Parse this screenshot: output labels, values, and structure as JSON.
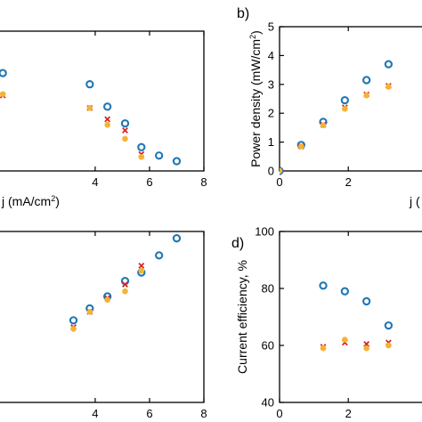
{
  "chart_data": [
    {
      "id": "a",
      "type": "scatter",
      "panel_label": "",
      "xlabel": "j (mA/cm²)",
      "ylabel": "",
      "xlim": [
        0.3,
        8
      ],
      "ylim": [
        0.2,
        5.2
      ],
      "xticks": [
        4,
        6,
        8
      ],
      "yticks": [],
      "series": [
        {
          "marker": "open-circle",
          "color": "#1f77b4",
          "x": [
            0.6,
            3.8,
            4.45,
            5.1,
            5.7,
            6.35,
            7.0
          ],
          "y": [
            3.7,
            3.3,
            2.5,
            1.9,
            1.05,
            0.75,
            0.55
          ]
        },
        {
          "marker": "cross",
          "color": "#d62728",
          "x": [
            0.6,
            3.8,
            4.45,
            5.1,
            5.7
          ],
          "y": [
            2.9,
            2.45,
            2.05,
            1.65,
            0.8
          ]
        },
        {
          "marker": "filled-circle",
          "color": "#f5b335",
          "x": [
            0.6,
            3.8,
            4.45,
            5.1,
            5.7
          ],
          "y": [
            2.95,
            2.45,
            1.85,
            1.35,
            0.7
          ]
        }
      ]
    },
    {
      "id": "b",
      "type": "scatter",
      "panel_label": "b)",
      "xlabel": "j (",
      "ylabel": "Power density (mW/cm²)",
      "xlim": [
        0,
        4.3
      ],
      "ylim": [
        0,
        5
      ],
      "xticks": [
        0,
        2
      ],
      "yticks": [
        0,
        1,
        2,
        3,
        4,
        5
      ],
      "series": [
        {
          "marker": "open-circle",
          "color": "#1f77b4",
          "x": [
            0,
            0.63,
            1.27,
            1.9,
            2.53,
            3.17
          ],
          "y": [
            0,
            0.9,
            1.7,
            2.45,
            3.15,
            3.7
          ]
        },
        {
          "marker": "cross",
          "color": "#d62728",
          "x": [
            0,
            0.63,
            1.27,
            1.9,
            2.53,
            3.17
          ],
          "y": [
            0,
            0.85,
            1.6,
            2.2,
            2.65,
            2.95
          ]
        },
        {
          "marker": "filled-circle",
          "color": "#f5b335",
          "x": [
            0,
            0.63,
            1.27,
            1.9,
            2.53,
            3.17
          ],
          "y": [
            0,
            0.85,
            1.58,
            2.15,
            2.62,
            2.92
          ]
        }
      ]
    },
    {
      "id": "c",
      "type": "scatter",
      "panel_label": "",
      "xlabel": "j (mA/cm²)",
      "ylabel": "",
      "xlim": [
        0.3,
        8
      ],
      "ylim": [
        0,
        100
      ],
      "xticks": [
        4,
        6,
        8
      ],
      "yticks": [],
      "series": [
        {
          "marker": "open-circle",
          "color": "#1f77b4",
          "x": [
            3.2,
            3.8,
            4.45,
            5.1,
            5.7,
            6.35,
            7.0
          ],
          "y": [
            48,
            55,
            62,
            71,
            76,
            86,
            96
          ]
        },
        {
          "marker": "cross",
          "color": "#d62728",
          "x": [
            3.2,
            3.8,
            4.45,
            5.1,
            5.7
          ],
          "y": [
            44,
            53,
            61,
            69,
            80
          ]
        },
        {
          "marker": "filled-circle",
          "color": "#f5b335",
          "x": [
            3.2,
            3.8,
            4.45,
            5.1,
            5.7
          ],
          "y": [
            43,
            53,
            60,
            65,
            77
          ]
        }
      ]
    },
    {
      "id": "d",
      "type": "scatter",
      "panel_label": "d)",
      "xlabel": "j (",
      "ylabel": "Current efficiency, %",
      "xlim": [
        0,
        4.3
      ],
      "ylim": [
        40,
        100
      ],
      "xticks": [
        0,
        2
      ],
      "yticks": [
        40,
        60,
        80,
        100
      ],
      "series": [
        {
          "marker": "open-circle",
          "color": "#1f77b4",
          "x": [
            1.27,
            1.9,
            2.53,
            3.17
          ],
          "y": [
            81,
            79,
            75.5,
            67
          ]
        },
        {
          "marker": "cross",
          "color": "#d62728",
          "x": [
            1.27,
            1.9,
            2.53,
            3.17
          ],
          "y": [
            59.5,
            61,
            60.5,
            61
          ]
        },
        {
          "marker": "filled-circle",
          "color": "#f5b335",
          "x": [
            1.27,
            1.9,
            2.53,
            3.17
          ],
          "y": [
            59,
            62,
            59,
            60
          ]
        }
      ]
    }
  ]
}
